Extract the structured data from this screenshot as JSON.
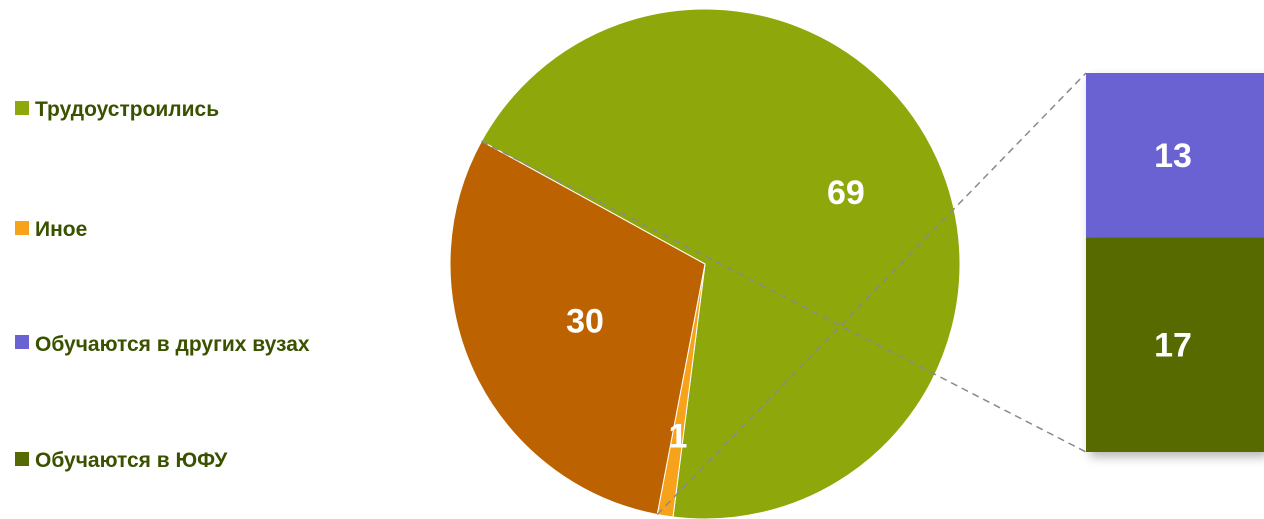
{
  "chart_data": {
    "type": "pie",
    "subtype": "bar-of-pie",
    "slices": [
      {
        "label": "Трудоустроились",
        "value": 69,
        "color": "#8ea80b"
      },
      {
        "label": "Иное",
        "value": 1,
        "color": "#f7a21b"
      },
      {
        "label": "Обучаются",
        "value": 30,
        "color": "#bd6200",
        "expanded": true
      }
    ],
    "breakdown": [
      {
        "label": "Обучаются в других вузах",
        "value": 13,
        "color": "#6a62d2"
      },
      {
        "label": "Обучаются в ЮФУ",
        "value": 17,
        "color": "#566a03"
      }
    ],
    "legend": {
      "position": "left",
      "items": [
        {
          "label": "Трудоустроились",
          "color": "#8ea80b"
        },
        {
          "label": "Иное",
          "color": "#f7a21b"
        },
        {
          "label": "Обучаются в других вузах",
          "color": "#6a62d2"
        },
        {
          "label": "Обучаются в ЮФУ",
          "color": "#566a03"
        }
      ]
    },
    "data_labels": {
      "slice_labels": [
        "69",
        "1",
        "30"
      ],
      "breakdown_labels": [
        "13",
        "17"
      ]
    }
  }
}
